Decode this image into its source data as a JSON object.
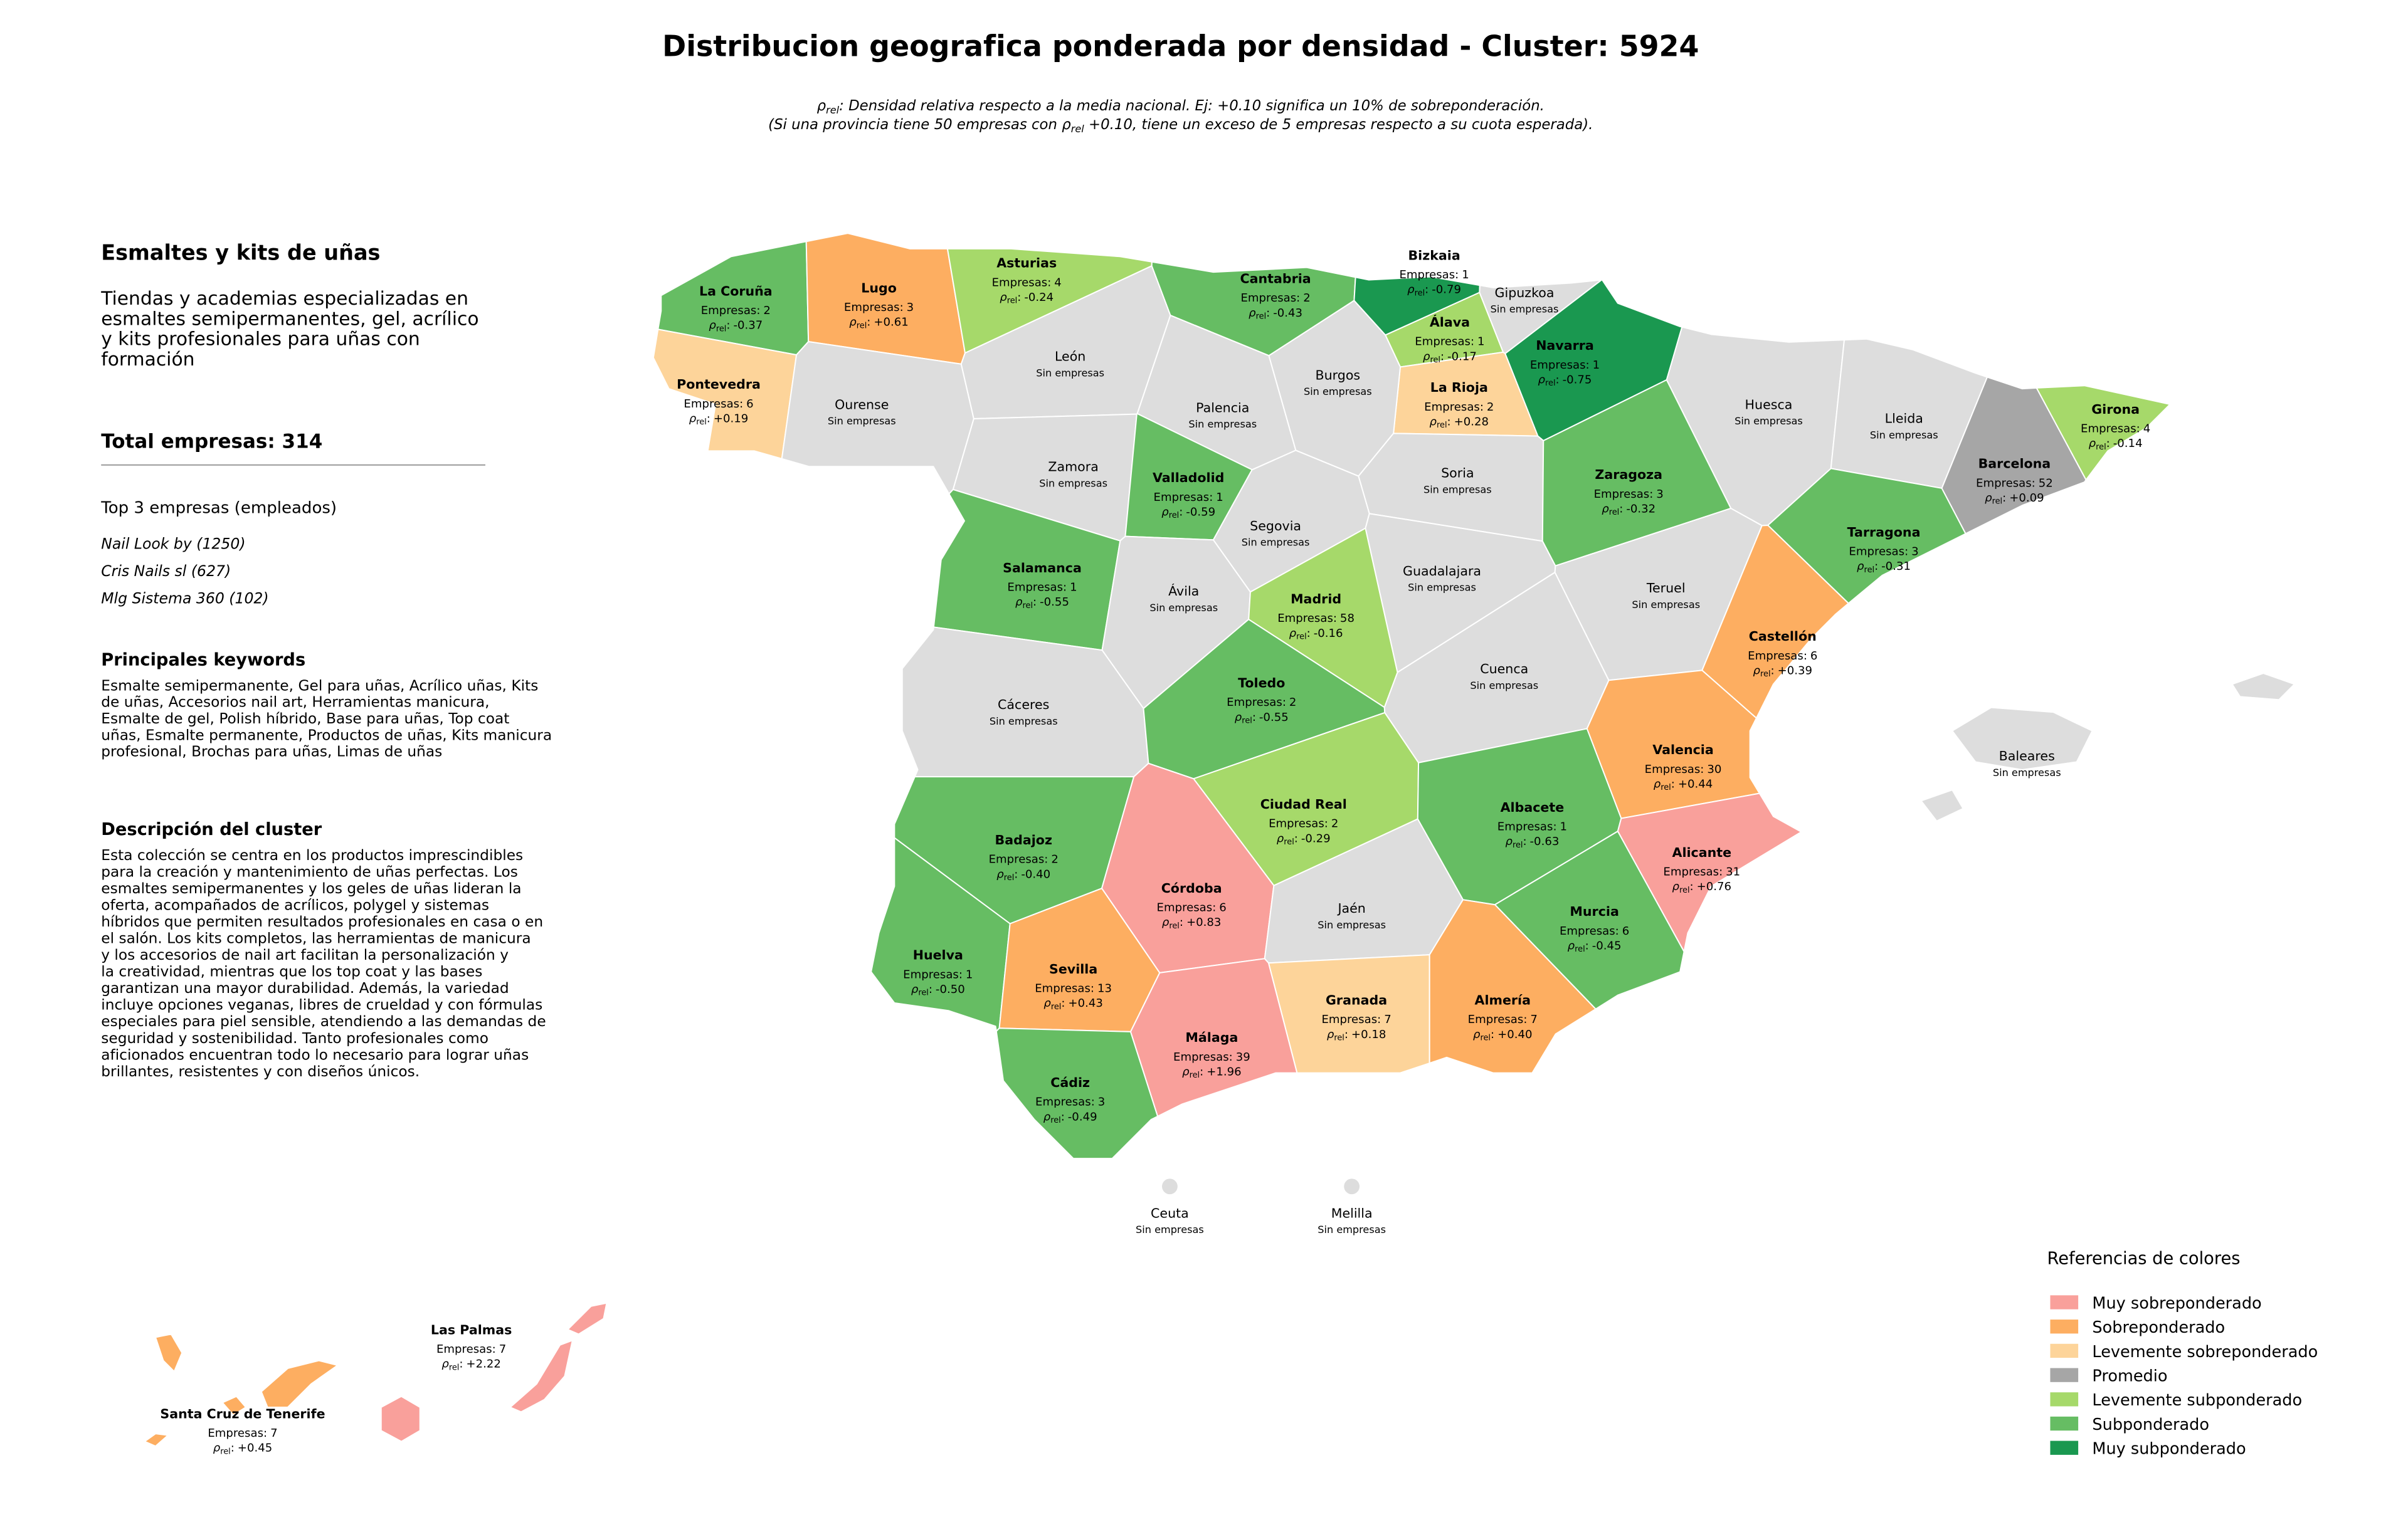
{
  "header": {
    "title": "Distribucion geografica ponderada por densidad - Cluster: 5924",
    "subtitle": [
      [
        "ρ",
        "rel",
        ": Densidad relativa respecto a la media nacional. Ej: +0.10 significa un 10% de sobreponderación."
      ],
      [
        "(Si una provincia tiene 50 empresas con ρ",
        "rel",
        " +0.10, tiene un exceso de 5 empresas respecto a su cuota esperada)."
      ]
    ]
  },
  "panel": {
    "title": "Esmaltes y kits de uñas",
    "intro": [
      "Tiendas y academias especializadas en",
      "esmaltes semipermanentes, gel, acrílico",
      "y kits profesionales para uñas con",
      "formación"
    ],
    "total": "Total empresas: 314",
    "top_title": "Top 3 empresas (empleados)",
    "top": [
      "Nail Look by (1250)",
      "Cris Nails sl (627)",
      "Mlg Sistema 360 (102)"
    ],
    "keywords_title": "Principales keywords",
    "keywords": [
      "Esmalte semipermanente, Gel para uñas, Acrílico uñas, Kits",
      "de uñas, Accesorios nail art, Herramientas manicura,",
      "Esmalte de gel, Polish híbrido, Base para uñas, Top coat",
      "uñas, Esmalte permanente, Productos de uñas, Kits manicura",
      "profesional, Brochas para uñas, Limas de uñas"
    ],
    "description_title": "Descripción del cluster",
    "description": [
      "Esta colección se centra en los productos imprescindibles",
      "para la creación y mantenimiento de uñas perfectas. Los",
      "esmaltes semipermanentes y los geles de uñas lideran la",
      "oferta, acompañados de acrílicos, polygel y sistemas",
      "híbridos que permiten resultados profesionales en casa o en",
      "el salón. Los kits completos, las herramientas de manicura",
      "y los accesorios de nail art facilitan la personalización y",
      "la creatividad, mientras que los top coat y las bases",
      "garantizan una mayor durabilidad. Además, la variedad",
      "incluye opciones veganas, libres de crueldad y con fórmulas",
      "especiales para piel sensible, atendiendo a las demandas de",
      "seguridad y sostenibilidad. Tanto profesionales como",
      "aficionados encuentran todo lo necesario para lograr uñas",
      "brillantes, resistentes y con diseños únicos."
    ]
  },
  "labels": {
    "companies": "Empresas:",
    "rho": [
      "ρ",
      "rel",
      ":"
    ],
    "no_data": "Sin empresas"
  },
  "no_data_color": "#dddddd",
  "provinces": [
    {
      "name": "La Coruña",
      "companies": 2,
      "rho": -0.37,
      "rho_label": "-0.37",
      "color": "#66bd63"
    },
    {
      "name": "Lugo",
      "companies": 3,
      "rho": 0.61,
      "rho_label": "+0.61",
      "color": "#fdae61"
    },
    {
      "name": "Asturias",
      "companies": 4,
      "rho": -0.24,
      "rho_label": "-0.24",
      "color": "#a6d96a"
    },
    {
      "name": "Cantabria",
      "companies": 2,
      "rho": -0.43,
      "rho_label": "-0.43",
      "color": "#66bd63"
    },
    {
      "name": "Bizkaia",
      "companies": 1,
      "rho": -0.79,
      "rho_label": "-0.79",
      "color": "#1a9850"
    },
    {
      "name": "Gipuzkoa"
    },
    {
      "name": "Álava",
      "companies": 1,
      "rho": -0.17,
      "rho_label": "-0.17",
      "color": "#a6d96a"
    },
    {
      "name": "Navarra",
      "companies": 1,
      "rho": -0.75,
      "rho_label": "-0.75",
      "color": "#1a9850"
    },
    {
      "name": "La Rioja",
      "companies": 2,
      "rho": 0.28,
      "rho_label": "+0.28",
      "color": "#fdd49a"
    },
    {
      "name": "Pontevedra",
      "companies": 6,
      "rho": 0.19,
      "rho_label": "+0.19",
      "color": "#fdd49a"
    },
    {
      "name": "Ourense"
    },
    {
      "name": "León"
    },
    {
      "name": "Palencia"
    },
    {
      "name": "Burgos"
    },
    {
      "name": "Huesca"
    },
    {
      "name": "Lleida"
    },
    {
      "name": "Girona",
      "companies": 4,
      "rho": -0.14,
      "rho_label": "-0.14",
      "color": "#a6d96a"
    },
    {
      "name": "Barcelona",
      "companies": 52,
      "rho": 0.09,
      "rho_label": "+0.09",
      "color": "#a6a6a6"
    },
    {
      "name": "Zamora"
    },
    {
      "name": "Valladolid",
      "companies": 1,
      "rho": -0.59,
      "rho_label": "-0.59",
      "color": "#66bd63"
    },
    {
      "name": "Soria"
    },
    {
      "name": "Zaragoza",
      "companies": 3,
      "rho": -0.32,
      "rho_label": "-0.32",
      "color": "#66bd63"
    },
    {
      "name": "Tarragona",
      "companies": 3,
      "rho": -0.31,
      "rho_label": "-0.31",
      "color": "#66bd63"
    },
    {
      "name": "Segovia"
    },
    {
      "name": "Salamanca",
      "companies": 1,
      "rho": -0.55,
      "rho_label": "-0.55",
      "color": "#66bd63"
    },
    {
      "name": "Ávila"
    },
    {
      "name": "Madrid",
      "companies": 58,
      "rho": -0.16,
      "rho_label": "-0.16",
      "color": "#a6d96a"
    },
    {
      "name": "Guadalajara"
    },
    {
      "name": "Teruel"
    },
    {
      "name": "Castellón",
      "companies": 6,
      "rho": 0.39,
      "rho_label": "+0.39",
      "color": "#fdae61"
    },
    {
      "name": "Cáceres"
    },
    {
      "name": "Toledo",
      "companies": 2,
      "rho": -0.55,
      "rho_label": "-0.55",
      "color": "#66bd63"
    },
    {
      "name": "Cuenca"
    },
    {
      "name": "Valencia",
      "companies": 30,
      "rho": 0.44,
      "rho_label": "+0.44",
      "color": "#fdae61"
    },
    {
      "name": "Badajoz",
      "companies": 2,
      "rho": -0.4,
      "rho_label": "-0.40",
      "color": "#66bd63"
    },
    {
      "name": "Ciudad Real",
      "companies": 2,
      "rho": -0.29,
      "rho_label": "-0.29",
      "color": "#a6d96a"
    },
    {
      "name": "Albacete",
      "companies": 1,
      "rho": -0.63,
      "rho_label": "-0.63",
      "color": "#66bd63"
    },
    {
      "name": "Alicante",
      "companies": 31,
      "rho": 0.76,
      "rho_label": "+0.76",
      "color": "#f9a09b"
    },
    {
      "name": "Córdoba",
      "companies": 6,
      "rho": 0.83,
      "rho_label": "+0.83",
      "color": "#f9a09b"
    },
    {
      "name": "Jaén"
    },
    {
      "name": "Murcia",
      "companies": 6,
      "rho": -0.45,
      "rho_label": "-0.45",
      "color": "#66bd63"
    },
    {
      "name": "Huelva",
      "companies": 1,
      "rho": -0.5,
      "rho_label": "-0.50",
      "color": "#66bd63"
    },
    {
      "name": "Sevilla",
      "companies": 13,
      "rho": 0.43,
      "rho_label": "+0.43",
      "color": "#fdae61"
    },
    {
      "name": "Granada",
      "companies": 7,
      "rho": 0.18,
      "rho_label": "+0.18",
      "color": "#fdd49a"
    },
    {
      "name": "Almería",
      "companies": 7,
      "rho": 0.4,
      "rho_label": "+0.40",
      "color": "#fdae61"
    },
    {
      "name": "Málaga",
      "companies": 39,
      "rho": 1.96,
      "rho_label": "+1.96",
      "color": "#f9a09b"
    },
    {
      "name": "Cádiz",
      "companies": 3,
      "rho": -0.49,
      "rho_label": "-0.49",
      "color": "#66bd63"
    },
    {
      "name": "Baleares"
    },
    {
      "name": "Las Palmas",
      "companies": 7,
      "rho": 2.22,
      "rho_label": "+2.22",
      "color": "#f9a09b"
    },
    {
      "name": "Santa Cruz de Tenerife",
      "companies": 7,
      "rho": 0.45,
      "rho_label": "+0.45",
      "color": "#fdae61"
    },
    {
      "name": "Ceuta"
    },
    {
      "name": "Melilla"
    }
  ],
  "legend": {
    "title": "Referencias de colores",
    "items": [
      {
        "name": "Muy sobreponderado",
        "color": "#f9a09b"
      },
      {
        "name": "Sobreponderado",
        "color": "#fdae61"
      },
      {
        "name": "Levemente sobreponderado",
        "color": "#fdd49a"
      },
      {
        "name": "Promedio",
        "color": "#a6a6a6"
      },
      {
        "name": "Levemente subponderado",
        "color": "#a6d96a"
      },
      {
        "name": "Subponderado",
        "color": "#66bd63"
      },
      {
        "name": "Muy subponderado",
        "color": "#1a9850"
      }
    ]
  }
}
